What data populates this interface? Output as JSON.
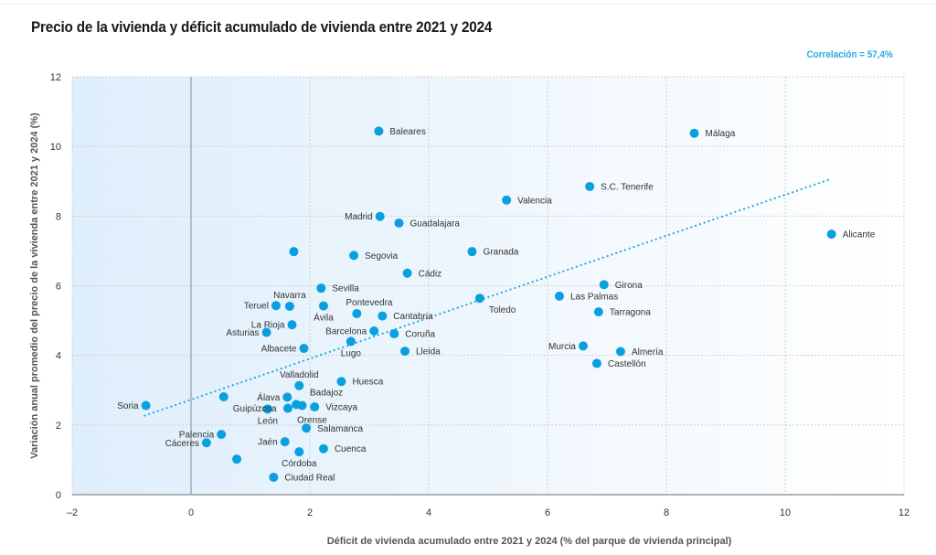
{
  "chart_data": {
    "type": "scatter",
    "title": "Precio de la vivienda y déficit acumulado de vivienda entre 2021 y 2024",
    "annotation": "Correlación = 57,4%",
    "xlabel": "Déficit de vivienda acumulado entre 2021 y 2024 (% del parque de vivienda principal)",
    "ylabel": "Variación anual promedio del precio de la vivienda entre 2021 y 2024 (%)",
    "xlim": [
      -2,
      12
    ],
    "ylim": [
      0,
      12
    ],
    "xticks": [
      -2,
      0,
      2,
      4,
      6,
      8,
      10,
      12
    ],
    "xtick_labels": [
      "–2",
      "0",
      "2",
      "4",
      "6",
      "8",
      "10",
      "12"
    ],
    "yticks": [
      0,
      2,
      4,
      6,
      8,
      10,
      12
    ],
    "ytick_labels": [
      "0",
      "2",
      "4",
      "6",
      "8",
      "10",
      "12"
    ],
    "grid": true,
    "marker_color": "#0a9fe0",
    "trendline": {
      "style": "dotted",
      "color": "#29a9e0",
      "x": [
        -0.78,
        10.78
      ],
      "y": [
        2.27,
        9.07
      ]
    },
    "points": [
      {
        "name": "Baleares",
        "x": 3.16,
        "y": 10.44,
        "label_pos": "right"
      },
      {
        "name": "Málaga",
        "x": 8.47,
        "y": 10.38,
        "label_pos": "right"
      },
      {
        "name": "S.C. Tenerife",
        "x": 6.71,
        "y": 8.85,
        "label_pos": "right"
      },
      {
        "name": "Valencia",
        "x": 5.31,
        "y": 8.46,
        "label_pos": "right"
      },
      {
        "name": "Madrid",
        "x": 3.18,
        "y": 7.99,
        "label_pos": "left"
      },
      {
        "name": "Guadalajara",
        "x": 3.5,
        "y": 7.8,
        "label_pos": "right"
      },
      {
        "name": "Alicante",
        "x": 10.78,
        "y": 7.48,
        "label_pos": "right"
      },
      {
        "name": "",
        "x": 1.73,
        "y": 6.98,
        "label_pos": "none"
      },
      {
        "name": "Segovia",
        "x": 2.74,
        "y": 6.87,
        "label_pos": "right"
      },
      {
        "name": "Granada",
        "x": 4.73,
        "y": 6.98,
        "label_pos": "right"
      },
      {
        "name": "Cádiz",
        "x": 3.64,
        "y": 6.36,
        "label_pos": "right"
      },
      {
        "name": "Girona",
        "x": 6.95,
        "y": 6.03,
        "label_pos": "right"
      },
      {
        "name": "Sevilla",
        "x": 2.19,
        "y": 5.93,
        "label_pos": "right"
      },
      {
        "name": "Las Palmas",
        "x": 6.2,
        "y": 5.7,
        "label_pos": "right"
      },
      {
        "name": "Toledo",
        "x": 4.86,
        "y": 5.64,
        "label_pos": "below-right"
      },
      {
        "name": "Teruel",
        "x": 1.43,
        "y": 5.43,
        "label_pos": "left"
      },
      {
        "name": "Navarra",
        "x": 1.66,
        "y": 5.41,
        "label_pos": "above"
      },
      {
        "name": "Ávila",
        "x": 2.23,
        "y": 5.42,
        "label_pos": "below"
      },
      {
        "name": "Tarragona",
        "x": 6.86,
        "y": 5.25,
        "label_pos": "right"
      },
      {
        "name": "Pontevedra",
        "x": 2.79,
        "y": 5.2,
        "label_pos": "above-right"
      },
      {
        "name": "Cantabria",
        "x": 3.22,
        "y": 5.13,
        "label_pos": "right"
      },
      {
        "name": "La Rioja",
        "x": 1.7,
        "y": 4.88,
        "label_pos": "left"
      },
      {
        "name": "Barcelona",
        "x": 3.08,
        "y": 4.7,
        "label_pos": "left"
      },
      {
        "name": "Asturias",
        "x": 1.27,
        "y": 4.66,
        "label_pos": "left"
      },
      {
        "name": "Coruña",
        "x": 3.42,
        "y": 4.62,
        "label_pos": "right"
      },
      {
        "name": "Lugo",
        "x": 2.69,
        "y": 4.4,
        "label_pos": "below"
      },
      {
        "name": "Murcia",
        "x": 6.6,
        "y": 4.27,
        "label_pos": "left"
      },
      {
        "name": "Albacete",
        "x": 1.9,
        "y": 4.2,
        "label_pos": "left"
      },
      {
        "name": "Lleida",
        "x": 3.6,
        "y": 4.12,
        "label_pos": "right"
      },
      {
        "name": "Almería",
        "x": 7.23,
        "y": 4.11,
        "label_pos": "right"
      },
      {
        "name": "Castellón",
        "x": 6.83,
        "y": 3.77,
        "label_pos": "right"
      },
      {
        "name": "Huesca",
        "x": 2.53,
        "y": 3.25,
        "label_pos": "right"
      },
      {
        "name": "Valladolid",
        "x": 1.82,
        "y": 3.13,
        "label_pos": "above"
      },
      {
        "name": "Guipúzcoa",
        "x": 0.55,
        "y": 2.81,
        "label_pos": "below-right"
      },
      {
        "name": "Álava",
        "x": 1.62,
        "y": 2.8,
        "label_pos": "left"
      },
      {
        "name": "Badajoz",
        "x": 1.77,
        "y": 2.59,
        "label_pos": "none"
      },
      {
        "name": "",
        "x": 1.87,
        "y": 2.56,
        "label_pos": "none"
      },
      {
        "name": "Soria",
        "x": -0.76,
        "y": 2.56,
        "label_pos": "left"
      },
      {
        "name": "Vizcaya",
        "x": 2.08,
        "y": 2.52,
        "label_pos": "right"
      },
      {
        "name": "Orense",
        "x": 1.63,
        "y": 2.48,
        "label_pos": "below-right"
      },
      {
        "name": "León",
        "x": 1.29,
        "y": 2.46,
        "label_pos": "below"
      },
      {
        "name": "Salamanca",
        "x": 1.94,
        "y": 1.91,
        "label_pos": "right"
      },
      {
        "name": "Palencia",
        "x": 0.51,
        "y": 1.73,
        "label_pos": "left"
      },
      {
        "name": "Jaén",
        "x": 1.58,
        "y": 1.52,
        "label_pos": "left"
      },
      {
        "name": "Cáceres",
        "x": 0.26,
        "y": 1.49,
        "label_pos": "left"
      },
      {
        "name": "Cuenca",
        "x": 2.23,
        "y": 1.32,
        "label_pos": "right"
      },
      {
        "name": "Córdoba",
        "x": 1.82,
        "y": 1.23,
        "label_pos": "below"
      },
      {
        "name": "",
        "x": 0.77,
        "y": 1.02,
        "label_pos": "none"
      },
      {
        "name": "Ciudad Real",
        "x": 1.39,
        "y": 0.5,
        "label_pos": "right"
      }
    ],
    "extra_labels": [
      {
        "text": "Badajoz",
        "x": 2.0,
        "y": 2.85
      }
    ]
  }
}
